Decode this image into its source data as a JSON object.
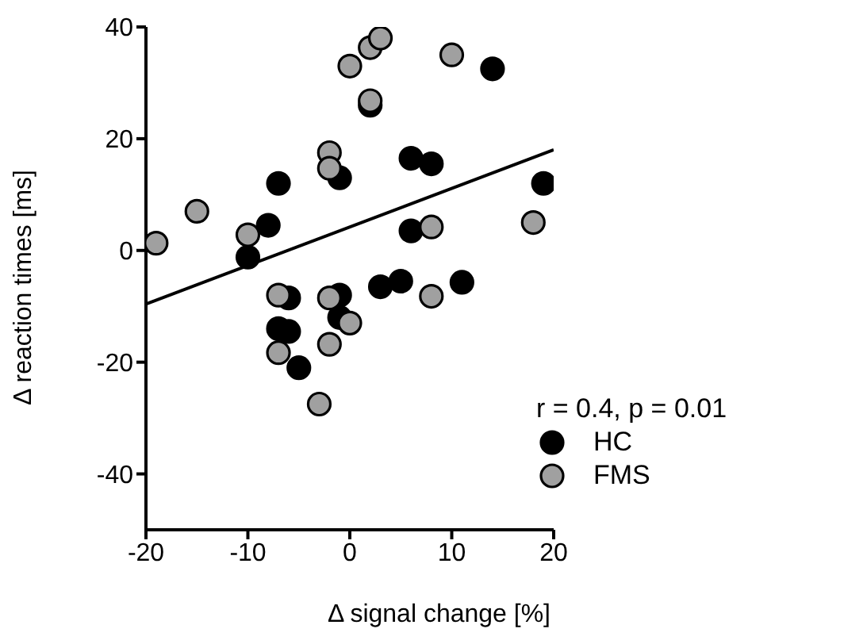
{
  "chart_data": {
    "type": "scatter",
    "xlabel": "Δ signal change [%]",
    "ylabel": "Δ reaction times [ms]",
    "xlim": [
      -20,
      20
    ],
    "xticks": [
      -20,
      -10,
      0,
      10,
      20
    ],
    "ylim": [
      -50,
      40
    ],
    "yticks": [
      -40,
      -20,
      0,
      20,
      40
    ],
    "legend": "bottom right",
    "marker": "circle",
    "annotations": [
      "r = 0.4, p = 0.01"
    ],
    "series": [
      {
        "name": "HC",
        "color": "#000000",
        "x": [
          -10,
          -8,
          -7,
          -1,
          -6,
          -1,
          -7,
          -6,
          -5,
          -1,
          2,
          14,
          6,
          8,
          19,
          6,
          3,
          5,
          11
        ],
        "values": [
          -1.2,
          4.5,
          12,
          13,
          -8.5,
          -8,
          -14,
          -14.5,
          -21,
          -12,
          26,
          32.5,
          16.5,
          15.5,
          12,
          3.5,
          -6.5,
          -5.5,
          -5.7
        ]
      },
      {
        "name": "FMS",
        "color": "#a0a0a0",
        "x": [
          -19,
          -15,
          -10,
          -7,
          -7,
          -2,
          -2,
          -2,
          -2,
          0,
          -3,
          0,
          2,
          3,
          2,
          10,
          8,
          8,
          18
        ],
        "values": [
          1.3,
          7,
          2.8,
          -8,
          -18.3,
          17.5,
          14.7,
          -8.5,
          -16.8,
          -13,
          -27.5,
          33,
          36.3,
          38,
          26.8,
          35,
          4.2,
          -8.2,
          5
        ]
      },
      {
        "type": "line",
        "color": "#000000",
        "marker": "none",
        "x": [
          -20,
          20
        ],
        "values": [
          -9.6,
          18
        ]
      }
    ]
  }
}
